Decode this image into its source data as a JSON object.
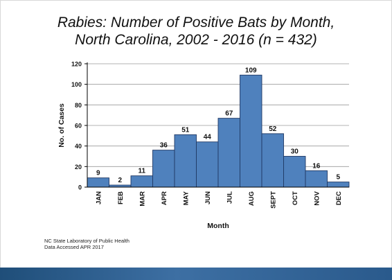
{
  "slide": {
    "title_line1": "Rabies: Number of Positive Bats by Month,",
    "title_line2": "North Carolina, 2002 - 2016 (n = 432)",
    "source_line1": "NC State Laboratory of Public Health",
    "source_line2": "Data Accessed APR 2017"
  },
  "chart_data": {
    "type": "bar",
    "title": "Rabies: Number of Positive Bats by Month, North Carolina, 2002 - 2016 (n = 432)",
    "xlabel": "Month",
    "ylabel": "No. of Cases",
    "categories": [
      "JAN",
      "FEB",
      "MAR",
      "APR",
      "MAY",
      "JUN",
      "JUL",
      "AUG",
      "SEPT",
      "OCT",
      "NOV",
      "DEC"
    ],
    "values": [
      9,
      2,
      11,
      36,
      51,
      44,
      67,
      109,
      52,
      30,
      16,
      5
    ],
    "ylim": [
      0,
      120
    ],
    "yticks": [
      0,
      20,
      40,
      60,
      80,
      100,
      120
    ],
    "grid": true,
    "legend": "none",
    "bar_color": "#4f81bd",
    "bar_edge_color": "#1f3864"
  }
}
